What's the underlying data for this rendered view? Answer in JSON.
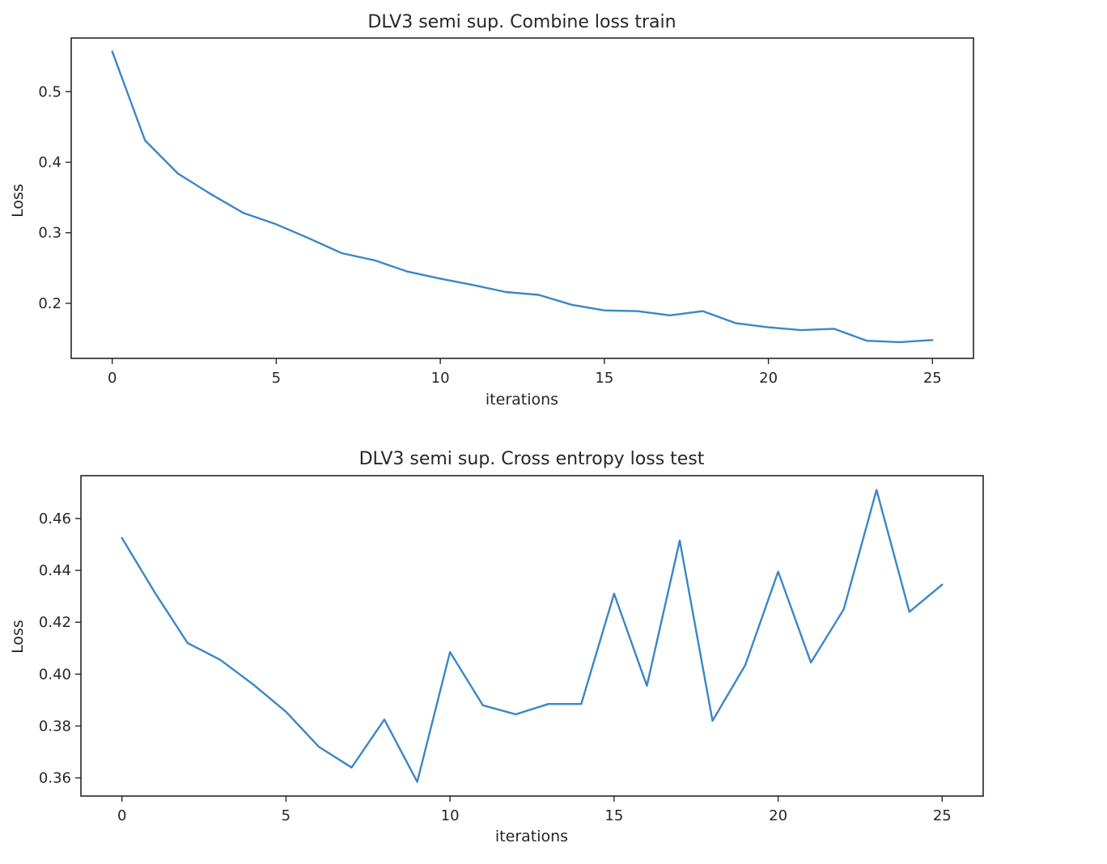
{
  "colors": {
    "series": "#3a87c7"
  },
  "chart_data": [
    {
      "type": "line",
      "title": "DLV3 semi sup. Combine loss train",
      "xlabel": "iterations",
      "ylabel": "Loss",
      "xlim": [
        -1.25,
        26.25
      ],
      "ylim": [
        0.122,
        0.576
      ],
      "xticks": [
        0,
        5,
        10,
        15,
        20,
        25
      ],
      "yticks": [
        0.2,
        0.3,
        0.4,
        0.5
      ],
      "xtick_labels": [
        "0",
        "5",
        "10",
        "15",
        "20",
        "25"
      ],
      "ytick_labels": [
        "0.2",
        "0.3",
        "0.4",
        "0.5"
      ],
      "grid": false,
      "series": [
        {
          "x": [
            0,
            1,
            2,
            3,
            4,
            5,
            6,
            7,
            8,
            9,
            10,
            11,
            12,
            13,
            14,
            15,
            16,
            17,
            18,
            19,
            20,
            21,
            22,
            23,
            24,
            25
          ],
          "values": [
            0.557,
            0.431,
            0.384,
            0.355,
            0.328,
            0.312,
            0.292,
            0.271,
            0.261,
            0.245,
            0.235,
            0.226,
            0.216,
            0.212,
            0.198,
            0.19,
            0.189,
            0.183,
            0.189,
            0.172,
            0.166,
            0.162,
            0.164,
            0.147,
            0.145,
            0.148
          ]
        }
      ]
    },
    {
      "type": "line",
      "title": "DLV3 semi sup. Cross entropy loss test",
      "xlabel": "iterations",
      "ylabel": "Loss",
      "xlim": [
        -1.25,
        26.25
      ],
      "ylim": [
        0.353,
        0.4765
      ],
      "xticks": [
        0,
        5,
        10,
        15,
        20,
        25
      ],
      "yticks": [
        0.36,
        0.38,
        0.4,
        0.42,
        0.44,
        0.46
      ],
      "xtick_labels": [
        "0",
        "5",
        "10",
        "15",
        "20",
        "25"
      ],
      "ytick_labels": [
        "0.36",
        "0.38",
        "0.40",
        "0.42",
        "0.44",
        "0.46"
      ],
      "grid": false,
      "series": [
        {
          "x": [
            0,
            1,
            2,
            3,
            4,
            5,
            6,
            7,
            8,
            9,
            10,
            11,
            12,
            13,
            14,
            15,
            16,
            17,
            18,
            19,
            20,
            21,
            22,
            23,
            24,
            25
          ],
          "values": [
            0.4525,
            0.4315,
            0.412,
            0.4055,
            0.396,
            0.3855,
            0.372,
            0.364,
            0.3825,
            0.3585,
            0.4085,
            0.388,
            0.3845,
            0.3885,
            0.3885,
            0.431,
            0.3955,
            0.4515,
            0.382,
            0.4035,
            0.4395,
            0.4045,
            0.425,
            0.471,
            0.424,
            0.4345
          ]
        }
      ]
    }
  ]
}
